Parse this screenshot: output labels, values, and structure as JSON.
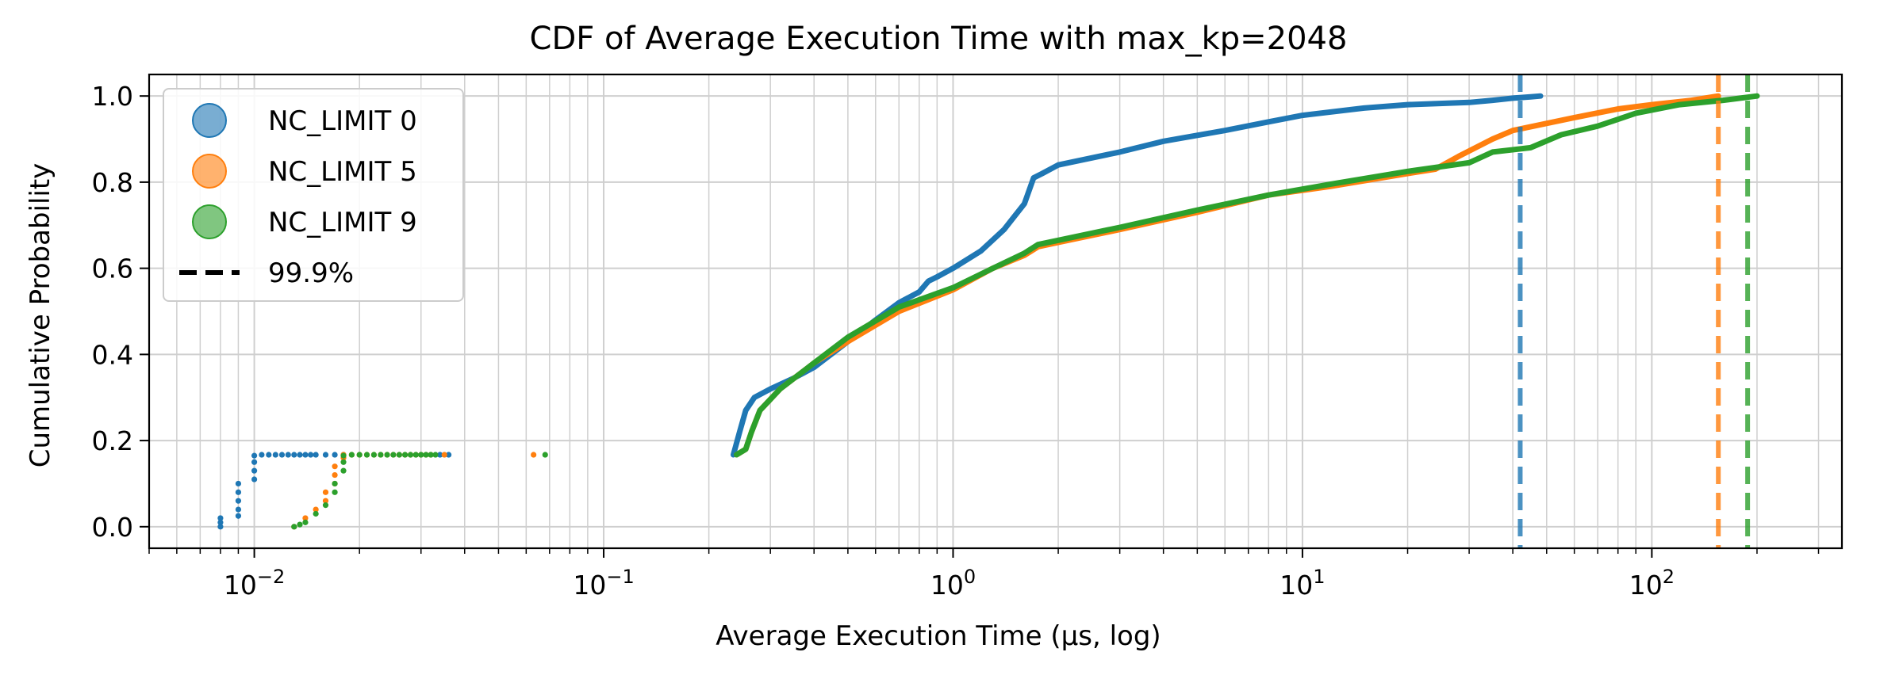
{
  "chart_data": {
    "type": "line",
    "title": "CDF of Average Execution Time with max_kp=2048",
    "xlabel": "Average Execution Time (μs, log)",
    "ylabel": "Cumulative Probability",
    "x_scale": "log",
    "xlim": [
      0.005,
      350
    ],
    "ylim": [
      -0.05,
      1.05
    ],
    "x_ticks": [
      {
        "value": 0.01,
        "base": "10",
        "exp": "−2"
      },
      {
        "value": 0.1,
        "base": "10",
        "exp": "−1"
      },
      {
        "value": 1,
        "base": "10",
        "exp": "0"
      },
      {
        "value": 10,
        "base": "10",
        "exp": "1"
      },
      {
        "value": 100,
        "base": "10",
        "exp": "2"
      }
    ],
    "y_ticks": [
      {
        "value": 0.0,
        "label": "0.0"
      },
      {
        "value": 0.2,
        "label": "0.2"
      },
      {
        "value": 0.4,
        "label": "0.4"
      },
      {
        "value": 0.6,
        "label": "0.6"
      },
      {
        "value": 0.8,
        "label": "0.8"
      },
      {
        "value": 1.0,
        "label": "1.0"
      }
    ],
    "grid": true,
    "legend_position": "upper-left",
    "legend": [
      {
        "label": "NC_LIMIT 0",
        "kind": "marker",
        "color": "#1f77b4"
      },
      {
        "label": "NC_LIMIT 5",
        "kind": "marker",
        "color": "#ff7f0e"
      },
      {
        "label": "NC_LIMIT 9",
        "kind": "marker",
        "color": "#2ca02c"
      },
      {
        "label": "99.9%",
        "kind": "dash",
        "color": "#000000"
      }
    ],
    "series": [
      {
        "name": "NC_LIMIT 0",
        "color": "#1f77b4",
        "p999": 42,
        "low_points": [
          [
            0.008,
            0.0
          ],
          [
            0.008,
            0.01
          ],
          [
            0.008,
            0.02
          ],
          [
            0.009,
            0.025
          ],
          [
            0.009,
            0.04
          ],
          [
            0.009,
            0.06
          ],
          [
            0.009,
            0.08
          ],
          [
            0.009,
            0.1
          ],
          [
            0.01,
            0.11
          ],
          [
            0.01,
            0.13
          ],
          [
            0.01,
            0.15
          ],
          [
            0.01,
            0.165
          ],
          [
            0.0105,
            0.167
          ],
          [
            0.011,
            0.167
          ],
          [
            0.0115,
            0.167
          ],
          [
            0.012,
            0.167
          ],
          [
            0.0125,
            0.167
          ],
          [
            0.013,
            0.167
          ],
          [
            0.0135,
            0.167
          ],
          [
            0.014,
            0.167
          ],
          [
            0.0145,
            0.167
          ],
          [
            0.015,
            0.167
          ],
          [
            0.016,
            0.167
          ],
          [
            0.017,
            0.167
          ],
          [
            0.018,
            0.167
          ],
          [
            0.034,
            0.167
          ],
          [
            0.036,
            0.167
          ]
        ],
        "curve": [
          [
            0.235,
            0.167
          ],
          [
            0.245,
            0.22
          ],
          [
            0.255,
            0.27
          ],
          [
            0.27,
            0.3
          ],
          [
            0.3,
            0.32
          ],
          [
            0.35,
            0.345
          ],
          [
            0.4,
            0.37
          ],
          [
            0.5,
            0.43
          ],
          [
            0.6,
            0.48
          ],
          [
            0.7,
            0.52
          ],
          [
            0.8,
            0.545
          ],
          [
            0.85,
            0.57
          ],
          [
            0.9,
            0.58
          ],
          [
            1.0,
            0.6
          ],
          [
            1.2,
            0.64
          ],
          [
            1.4,
            0.69
          ],
          [
            1.6,
            0.75
          ],
          [
            1.7,
            0.81
          ],
          [
            1.8,
            0.82
          ],
          [
            2.0,
            0.84
          ],
          [
            3.0,
            0.87
          ],
          [
            4.0,
            0.895
          ],
          [
            6.0,
            0.92
          ],
          [
            8.0,
            0.94
          ],
          [
            10.0,
            0.955
          ],
          [
            15.0,
            0.972
          ],
          [
            20.0,
            0.98
          ],
          [
            30.0,
            0.985
          ],
          [
            35.0,
            0.99
          ],
          [
            40.0,
            0.995
          ],
          [
            45.0,
            0.998
          ],
          [
            48.0,
            1.0
          ]
        ]
      },
      {
        "name": "NC_LIMIT 5",
        "color": "#ff7f0e",
        "p999": 155,
        "low_points": [
          [
            0.013,
            0.0
          ],
          [
            0.014,
            0.02
          ],
          [
            0.015,
            0.04
          ],
          [
            0.016,
            0.06
          ],
          [
            0.016,
            0.08
          ],
          [
            0.017,
            0.1
          ],
          [
            0.017,
            0.12
          ],
          [
            0.017,
            0.14
          ],
          [
            0.018,
            0.16
          ],
          [
            0.018,
            0.167
          ],
          [
            0.019,
            0.167
          ],
          [
            0.02,
            0.167
          ],
          [
            0.021,
            0.167
          ],
          [
            0.022,
            0.167
          ],
          [
            0.023,
            0.167
          ],
          [
            0.024,
            0.167
          ],
          [
            0.025,
            0.167
          ],
          [
            0.026,
            0.167
          ],
          [
            0.027,
            0.167
          ],
          [
            0.028,
            0.167
          ],
          [
            0.029,
            0.167
          ],
          [
            0.03,
            0.167
          ],
          [
            0.031,
            0.167
          ],
          [
            0.032,
            0.167
          ],
          [
            0.035,
            0.167
          ],
          [
            0.063,
            0.167
          ]
        ],
        "curve": [
          [
            0.24,
            0.167
          ],
          [
            0.255,
            0.18
          ],
          [
            0.265,
            0.22
          ],
          [
            0.28,
            0.27
          ],
          [
            0.32,
            0.32
          ],
          [
            0.4,
            0.38
          ],
          [
            0.5,
            0.43
          ],
          [
            0.7,
            0.5
          ],
          [
            1.0,
            0.55
          ],
          [
            1.3,
            0.6
          ],
          [
            1.6,
            0.63
          ],
          [
            1.75,
            0.65
          ],
          [
            2.0,
            0.66
          ],
          [
            3.0,
            0.69
          ],
          [
            5.0,
            0.73
          ],
          [
            8.0,
            0.77
          ],
          [
            12.0,
            0.79
          ],
          [
            20.0,
            0.82
          ],
          [
            24.0,
            0.83
          ],
          [
            28.0,
            0.86
          ],
          [
            35.0,
            0.9
          ],
          [
            40.0,
            0.92
          ],
          [
            60.0,
            0.95
          ],
          [
            80.0,
            0.97
          ],
          [
            100.0,
            0.98
          ],
          [
            130.0,
            0.99
          ],
          [
            155.0,
            1.0
          ]
        ]
      },
      {
        "name": "NC_LIMIT 9",
        "color": "#2ca02c",
        "p999": 188,
        "low_points": [
          [
            0.013,
            0.0
          ],
          [
            0.0135,
            0.005
          ],
          [
            0.014,
            0.01
          ],
          [
            0.015,
            0.03
          ],
          [
            0.016,
            0.05
          ],
          [
            0.017,
            0.08
          ],
          [
            0.017,
            0.1
          ],
          [
            0.018,
            0.13
          ],
          [
            0.018,
            0.15
          ],
          [
            0.018,
            0.165
          ],
          [
            0.019,
            0.167
          ],
          [
            0.02,
            0.167
          ],
          [
            0.021,
            0.167
          ],
          [
            0.022,
            0.167
          ],
          [
            0.023,
            0.167
          ],
          [
            0.024,
            0.167
          ],
          [
            0.025,
            0.167
          ],
          [
            0.026,
            0.167
          ],
          [
            0.027,
            0.167
          ],
          [
            0.028,
            0.167
          ],
          [
            0.029,
            0.167
          ],
          [
            0.03,
            0.167
          ],
          [
            0.031,
            0.167
          ],
          [
            0.032,
            0.167
          ],
          [
            0.033,
            0.167
          ],
          [
            0.068,
            0.167
          ]
        ],
        "curve": [
          [
            0.24,
            0.167
          ],
          [
            0.255,
            0.18
          ],
          [
            0.265,
            0.22
          ],
          [
            0.28,
            0.27
          ],
          [
            0.32,
            0.32
          ],
          [
            0.4,
            0.38
          ],
          [
            0.5,
            0.44
          ],
          [
            0.7,
            0.51
          ],
          [
            1.0,
            0.555
          ],
          [
            1.3,
            0.6
          ],
          [
            1.6,
            0.635
          ],
          [
            1.75,
            0.655
          ],
          [
            2.0,
            0.665
          ],
          [
            3.0,
            0.695
          ],
          [
            5.0,
            0.735
          ],
          [
            8.0,
            0.77
          ],
          [
            12.0,
            0.795
          ],
          [
            20.0,
            0.825
          ],
          [
            30.0,
            0.845
          ],
          [
            35.0,
            0.87
          ],
          [
            45.0,
            0.88
          ],
          [
            55.0,
            0.91
          ],
          [
            70.0,
            0.93
          ],
          [
            90.0,
            0.96
          ],
          [
            120.0,
            0.98
          ],
          [
            160.0,
            0.99
          ],
          [
            200.0,
            1.0
          ]
        ]
      }
    ]
  }
}
